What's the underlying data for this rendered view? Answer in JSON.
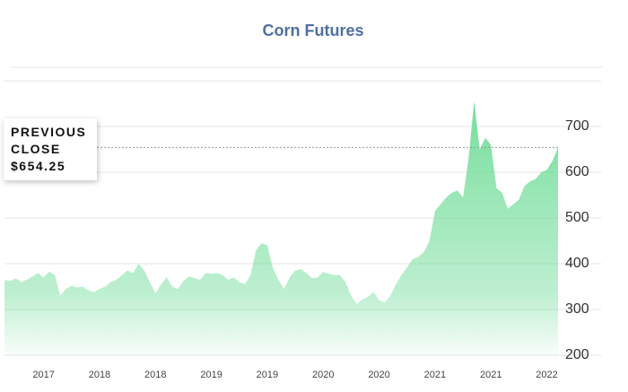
{
  "chart_data": {
    "type": "area",
    "title": "Corn Futures",
    "categories": [
      null,
      null,
      null,
      null,
      null,
      null,
      null,
      "2017",
      null,
      null,
      null,
      null,
      null,
      null,
      null,
      null,
      null,
      "2018",
      null,
      null,
      null,
      null,
      null,
      null,
      null,
      null,
      null,
      "2018",
      null,
      null,
      null,
      null,
      null,
      null,
      null,
      null,
      null,
      "2019",
      null,
      null,
      null,
      null,
      null,
      null,
      null,
      null,
      null,
      "2019",
      null,
      null,
      null,
      null,
      null,
      null,
      null,
      null,
      null,
      "2020",
      null,
      null,
      null,
      null,
      null,
      null,
      null,
      null,
      null,
      "2020",
      null,
      null,
      null,
      null,
      null,
      null,
      null,
      null,
      null,
      "2021",
      null,
      null,
      null,
      null,
      null,
      null,
      null,
      null,
      null,
      "2021",
      null,
      null,
      null,
      null,
      null,
      null,
      null,
      null,
      null,
      "2022",
      null,
      null
    ],
    "values": [
      365,
      362,
      368,
      360,
      365,
      372,
      380,
      370,
      383,
      375,
      330,
      345,
      352,
      348,
      350,
      342,
      338,
      345,
      350,
      360,
      365,
      375,
      385,
      380,
      400,
      385,
      360,
      335,
      355,
      370,
      350,
      345,
      362,
      372,
      368,
      365,
      380,
      378,
      380,
      375,
      365,
      370,
      360,
      355,
      375,
      430,
      445,
      440,
      390,
      365,
      345,
      370,
      385,
      388,
      380,
      368,
      370,
      382,
      378,
      375,
      375,
      360,
      330,
      312,
      322,
      328,
      338,
      320,
      315,
      330,
      355,
      375,
      392,
      410,
      415,
      425,
      450,
      515,
      530,
      545,
      555,
      560,
      545,
      630,
      755,
      650,
      675,
      660,
      565,
      555,
      520,
      530,
      540,
      570,
      580,
      585,
      600,
      605,
      625,
      654.25
    ],
    "color": "#6fdc97",
    "ylim": [
      200,
      800
    ],
    "yticks": [
      200,
      300,
      400,
      500,
      600,
      700
    ],
    "grid": true,
    "annotation": {
      "label": "PREVIOUS CLOSE",
      "value": 654.25,
      "value_label": "$654.25"
    }
  }
}
